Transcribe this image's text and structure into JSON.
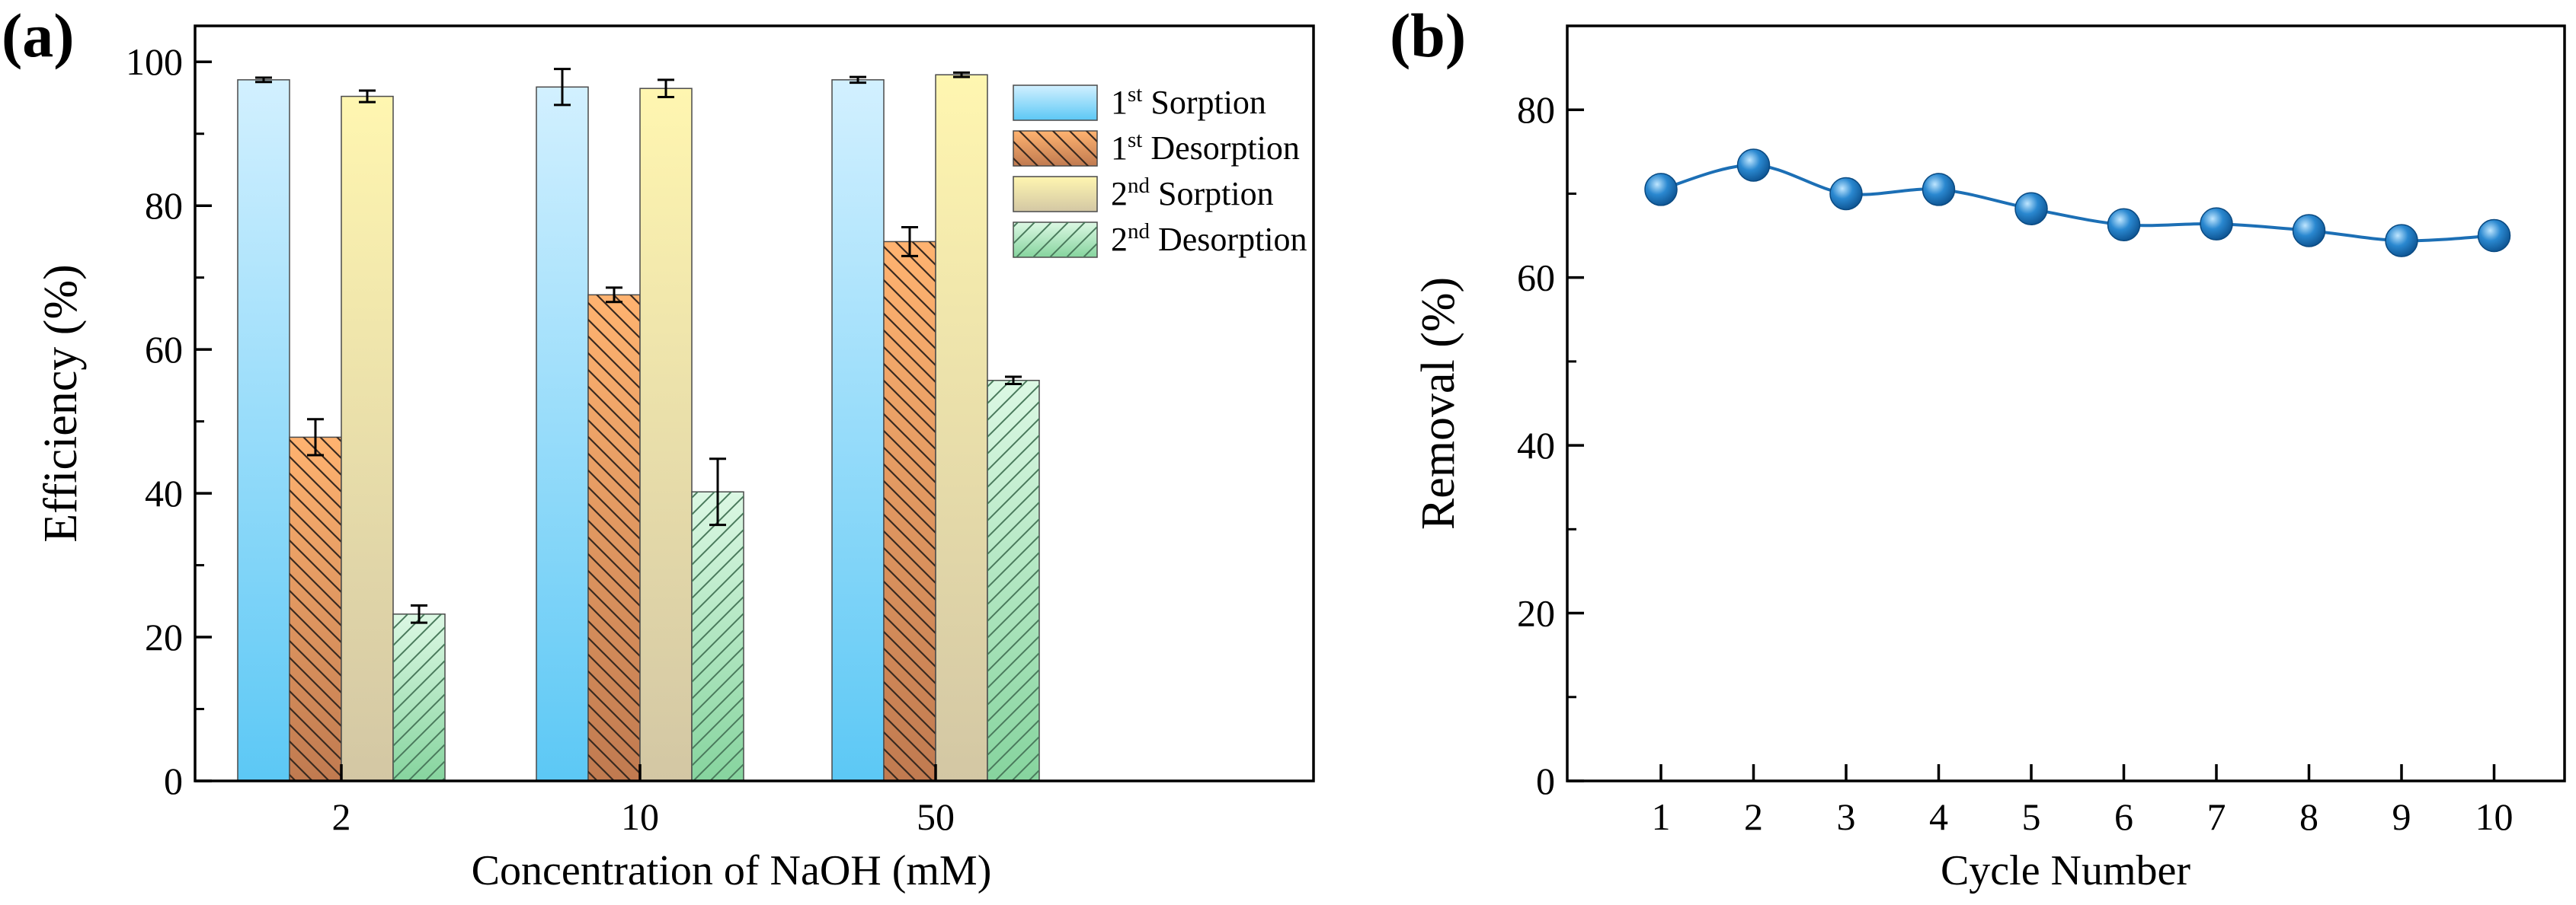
{
  "chart_data": [
    {
      "panel_label": "(a)",
      "type": "bar",
      "xlabel": "Concentration of NaOH (mM)",
      "ylabel": "Efficiency (%)",
      "ylim": [
        0,
        105
      ],
      "yticks": [
        0,
        20,
        40,
        60,
        80,
        100
      ],
      "categories": [
        "2",
        "10",
        "50"
      ],
      "series": [
        {
          "name": "1st Sorption",
          "label_num": "1",
          "label_sup": "st",
          "label_word": "Sorption",
          "values": [
            97.5,
            96.5,
            97.5
          ],
          "errors": [
            0.3,
            2.5,
            0.4
          ],
          "fill_top": "#d2f0ff",
          "fill_bottom": "#5cc8f5",
          "hatch": "none"
        },
        {
          "name": "1st Desorption",
          "label_num": "1",
          "label_sup": "st",
          "label_word": "Desorption",
          "values": [
            47.8,
            67.6,
            75.0
          ],
          "errors": [
            2.5,
            1.0,
            2.0
          ],
          "fill_top": "#ffb370",
          "fill_bottom": "#c07a50",
          "hatch": "diag-down"
        },
        {
          "name": "2nd Sorption",
          "label_num": "2",
          "label_sup": "nd",
          "label_word": "Sorption",
          "values": [
            95.2,
            96.3,
            98.2
          ],
          "errors": [
            0.8,
            1.2,
            0.3
          ],
          "fill_top": "#fff6b0",
          "fill_bottom": "#d3c7a4",
          "hatch": "none"
        },
        {
          "name": "2nd Desorption",
          "label_num": "2",
          "label_sup": "nd",
          "label_word": "Desorption",
          "values": [
            23.2,
            40.2,
            55.7
          ],
          "errors": [
            1.2,
            4.6,
            0.5
          ],
          "fill_top": "#dcf8e4",
          "fill_bottom": "#86d49e",
          "hatch": "diag-up"
        }
      ],
      "legend_position": "top-right"
    },
    {
      "panel_label": "(b)",
      "type": "line",
      "xlabel": "Cycle Number",
      "ylabel": "Removal (%)",
      "ylim": [
        0,
        90
      ],
      "yticks": [
        0,
        20,
        40,
        60,
        80
      ],
      "x": [
        1,
        2,
        3,
        4,
        5,
        6,
        7,
        8,
        9,
        10
      ],
      "series": [
        {
          "name": "Removal",
          "values": [
            70.5,
            73.4,
            70.0,
            70.5,
            68.2,
            66.3,
            66.4,
            65.6,
            64.4,
            65.0
          ],
          "color": "#1c6fb5"
        }
      ]
    }
  ]
}
